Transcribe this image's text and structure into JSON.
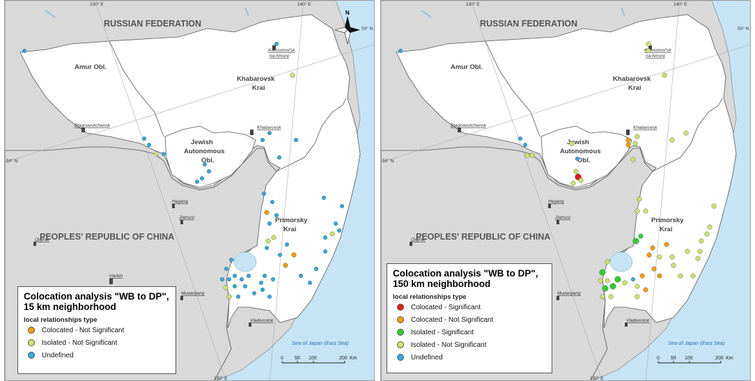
{
  "colors": {
    "foreign_land": "#d9d9d9",
    "study_land": "#ffffff",
    "water": "#c6e4f5",
    "border": "#555555",
    "colocated_significant": "#e41a1c",
    "colocated_not_significant": "#f39c12",
    "isolated_significant": "#33cc33",
    "isolated_not_significant": "#c8e66e",
    "undefined": "#33aadd"
  },
  "map_labels": {
    "country_ru": "RUSSIAN FEDERATION",
    "country_cn": "PEOPLES' REPUBLIC OF CHINA",
    "amur": "Amur Obl.",
    "khab1": "Khabarovsk",
    "khab2": "Krai",
    "jew1": "Jewish",
    "jew2": "Autonomous",
    "jew3": "Obl.",
    "prim1": "Primorsky",
    "prim2": "Krai",
    "komsomolsk1": "Komsomol'sk",
    "komsomolsk2": "na Amure",
    "blagoveshchensk": "Blagoveshchensk",
    "khabarovsk_city": "Khabarovsk",
    "hegang": "Hegang",
    "jiamusi": "Jiamusi",
    "qiqihar": "Qiqihar",
    "harbin": "Harbin",
    "mudanjiang": "Mudanjiang",
    "vladivostok": "Vladivostok",
    "sea": "Sea of Japan (East Sea)",
    "north": "N"
  },
  "grid": {
    "lon130_top": "130° E",
    "lon140_top": "140° E",
    "lon130_bottom": "130° E",
    "lat50_left": "50° N",
    "lat50_right": "50° N"
  },
  "scale": {
    "t0": "0",
    "t50": "50",
    "t100": "100",
    "t200": "200",
    "unit": "Km"
  },
  "legend_left": {
    "title": "Colocation analysis \"WB to DP\", 15 km neighborhood",
    "subtitle": "local relationships type",
    "items": [
      {
        "label": "Colocated - Not Significant",
        "color": "#f39c12"
      },
      {
        "label": "Isolated - Not Significant",
        "color": "#c8e66e"
      },
      {
        "label": "Undefined",
        "color": "#33aadd"
      }
    ]
  },
  "legend_right": {
    "title": "Colocation analysis \"WB to DP\", 150 km neighborhood",
    "subtitle": "local relationships type",
    "items": [
      {
        "label": "Colocated - Significant",
        "color": "#e41a1c"
      },
      {
        "label": "Colocated - Not Significant",
        "color": "#f39c12"
      },
      {
        "label": "Isolated - Significant",
        "color": "#33cc33"
      },
      {
        "label": "Isolated - Not Significant",
        "color": "#c8e66e"
      },
      {
        "label": "Undefined",
        "color": "#33aadd"
      }
    ]
  }
}
